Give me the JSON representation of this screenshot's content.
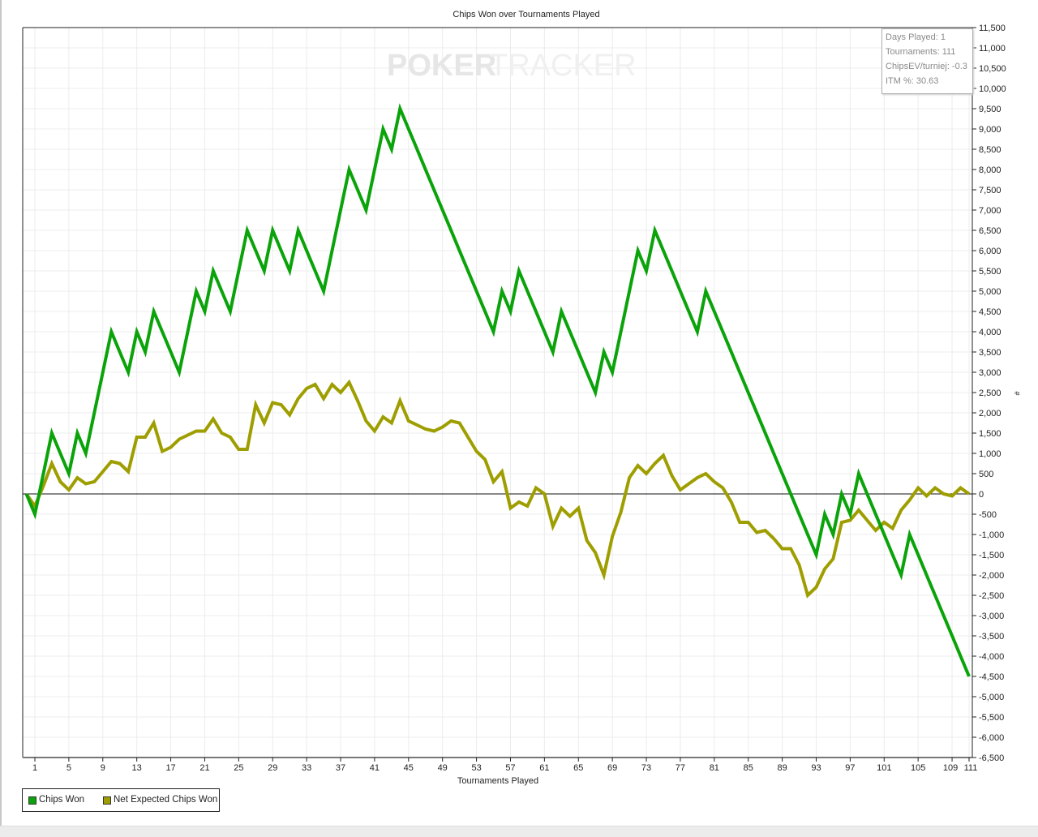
{
  "chart_data": {
    "type": "line",
    "title": "Chips Won over Tournaments Played",
    "xlabel": "Tournaments Played",
    "ylabel": "#",
    "xlim": [
      0,
      111
    ],
    "ylim": [
      -6500,
      11500
    ],
    "grid": true,
    "legend_position": "bottom-left",
    "x_ticks": [
      "1",
      "5",
      "9",
      "13",
      "17",
      "21",
      "25",
      "29",
      "33",
      "37",
      "41",
      "45",
      "49",
      "53",
      "57",
      "61",
      "65",
      "69",
      "73",
      "77",
      "81",
      "85",
      "89",
      "93",
      "97",
      "101",
      "105",
      "109",
      "111"
    ],
    "y_ticks": [
      "11,500",
      "11,000",
      "10,500",
      "10,000",
      "9,500",
      "9,000",
      "8,500",
      "8,000",
      "7,500",
      "7,000",
      "6,500",
      "6,000",
      "5,500",
      "5,000",
      "4,500",
      "4,000",
      "3,500",
      "3,000",
      "2,500",
      "2,000",
      "1,500",
      "1,000",
      "500",
      "0",
      "-500",
      "-1,000",
      "-1,500",
      "-2,000",
      "-2,500",
      "-3,000",
      "-3,500",
      "-4,000",
      "-4,500",
      "-5,000",
      "-5,500",
      "-6,000",
      "-6,500"
    ],
    "series": [
      {
        "name": "Chips Won",
        "color": "#0aa30a",
        "values": [
          0,
          -500,
          500,
          1500,
          1000,
          500,
          1500,
          1000,
          2000,
          3000,
          4000,
          3500,
          3000,
          4000,
          3500,
          4500,
          4000,
          3500,
          3000,
          4000,
          5000,
          4500,
          5500,
          5000,
          4500,
          5500,
          6500,
          6000,
          5500,
          6500,
          6000,
          5500,
          6500,
          6000,
          5500,
          5000,
          6000,
          7000,
          8000,
          7500,
          7000,
          8000,
          9000,
          8500,
          9500,
          9000,
          8500,
          8000,
          7500,
          7000,
          6500,
          6000,
          5500,
          5000,
          4500,
          4000,
          5000,
          4500,
          5500,
          5000,
          4500,
          4000,
          3500,
          4500,
          4000,
          3500,
          3000,
          2500,
          3500,
          3000,
          4000,
          5000,
          6000,
          5500,
          6500,
          6000,
          5500,
          5000,
          4500,
          4000,
          5000,
          4500,
          4000,
          3500,
          3000,
          2500,
          2000,
          1500,
          1000,
          500,
          0,
          -500,
          -1000,
          -1500,
          -500,
          -1000,
          0,
          -500,
          500,
          0,
          -500,
          -1000,
          -1500,
          -2000,
          -1000,
          -1500,
          -2000,
          -2500,
          -3000,
          -3500,
          -4000,
          -4500
        ]
      },
      {
        "name": "Net Expected Chips Won",
        "color": "#9e9e00",
        "values": [
          0,
          -300,
          200,
          750,
          300,
          100,
          400,
          250,
          300,
          550,
          800,
          750,
          550,
          1400,
          1400,
          1750,
          1050,
          1150,
          1350,
          1450,
          1550,
          1550,
          1850,
          1500,
          1400,
          1100,
          1100,
          2200,
          1750,
          2250,
          2200,
          1950,
          2350,
          2600,
          2700,
          2350,
          2700,
          2500,
          2750,
          2300,
          1800,
          1550,
          1900,
          1750,
          2300,
          1800,
          1700,
          1600,
          1550,
          1650,
          1800,
          1750,
          1400,
          1050,
          850,
          300,
          550,
          -350,
          -200,
          -300,
          150,
          0,
          -800,
          -350,
          -550,
          -350,
          -1150,
          -1450,
          -2000,
          -1050,
          -450,
          400,
          700,
          500,
          750,
          950,
          450,
          100,
          250,
          400,
          500,
          300,
          150,
          -200,
          -700,
          -700,
          -950,
          -900,
          -1100,
          -1350,
          -1350,
          -1750,
          -2500,
          -2300,
          -1850,
          -1600,
          -700,
          -650,
          -400,
          -650,
          -900,
          -700,
          -850,
          -400,
          -150,
          150,
          -50,
          150,
          0,
          -50,
          150,
          0
        ]
      }
    ]
  },
  "watermark": {
    "text_bold": "POKER",
    "text_light": "TRACKER"
  },
  "info_box": {
    "days_played": "Days Played: 1",
    "tournaments": "Tournaments: 111",
    "chips_ev": "ChipsEV/turniej: -0.3",
    "itm": "ITM %: 30.63"
  }
}
